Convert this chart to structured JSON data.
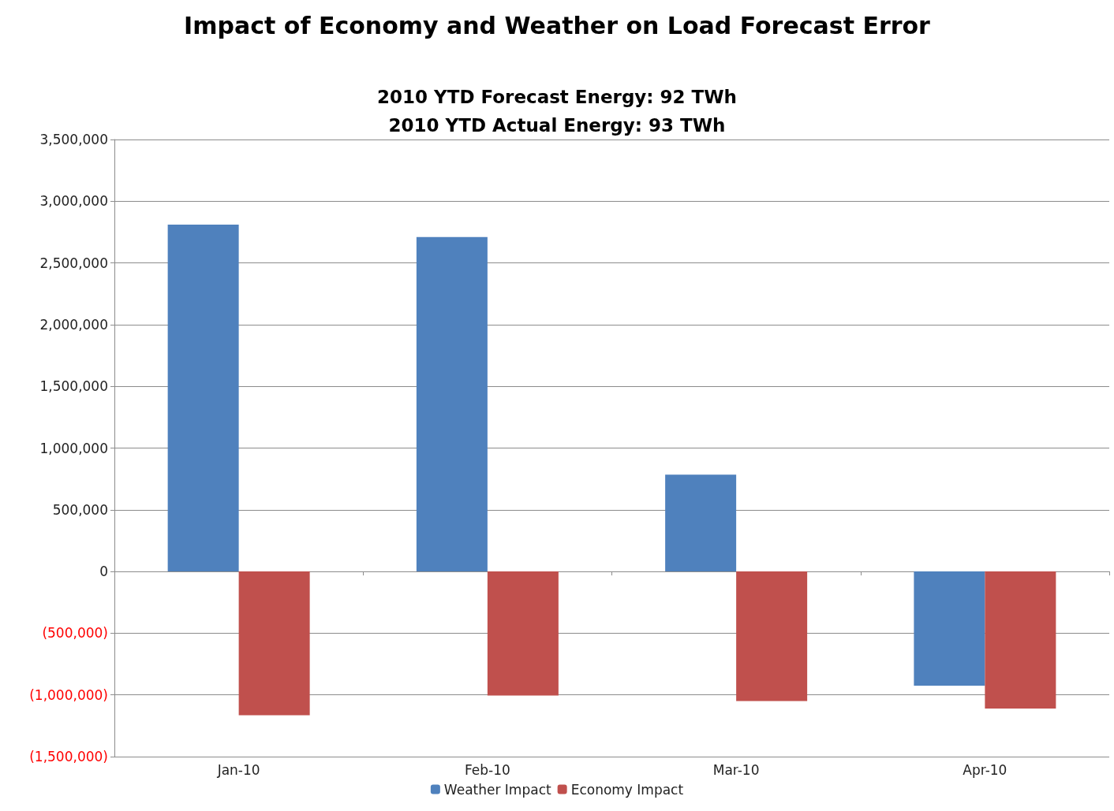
{
  "chart_data": {
    "type": "bar",
    "title": "Impact of Economy and Weather on Load Forecast Error",
    "subtitle": "2010 YTD Forecast Energy: 92 TWh\n2010 YTD Actual Energy: 93 TWh",
    "categories": [
      "Jan-10",
      "Feb-10",
      "Mar-10",
      "Apr-10"
    ],
    "series": [
      {
        "name": "Weather Impact",
        "color": "#4f81bd",
        "values": [
          2810000,
          2710000,
          785000,
          -925000
        ]
      },
      {
        "name": "Economy Impact",
        "color": "#c0504d",
        "values": [
          -1165000,
          -1005000,
          -1050000,
          -1110000
        ]
      }
    ],
    "ylim": [
      -1500000,
      3500000
    ],
    "yticks": [
      {
        "value": -1500000,
        "label": "(1,500,000)"
      },
      {
        "value": -1000000,
        "label": "(1,000,000)"
      },
      {
        "value": -500000,
        "label": "(500,000)"
      },
      0,
      {
        "value": 500000,
        "label": "500,000"
      },
      {
        "value": 1000000,
        "label": "1,000,000"
      },
      {
        "value": 1500000,
        "label": "1,500,000"
      },
      {
        "value": 2000000,
        "label": "2,000,000"
      },
      {
        "value": 2500000,
        "label": "2,500,000"
      },
      {
        "value": 3000000,
        "label": "3,000,000"
      },
      {
        "value": 3500000,
        "label": "3,500,000"
      }
    ],
    "grid": "y",
    "legend": "bottom"
  }
}
